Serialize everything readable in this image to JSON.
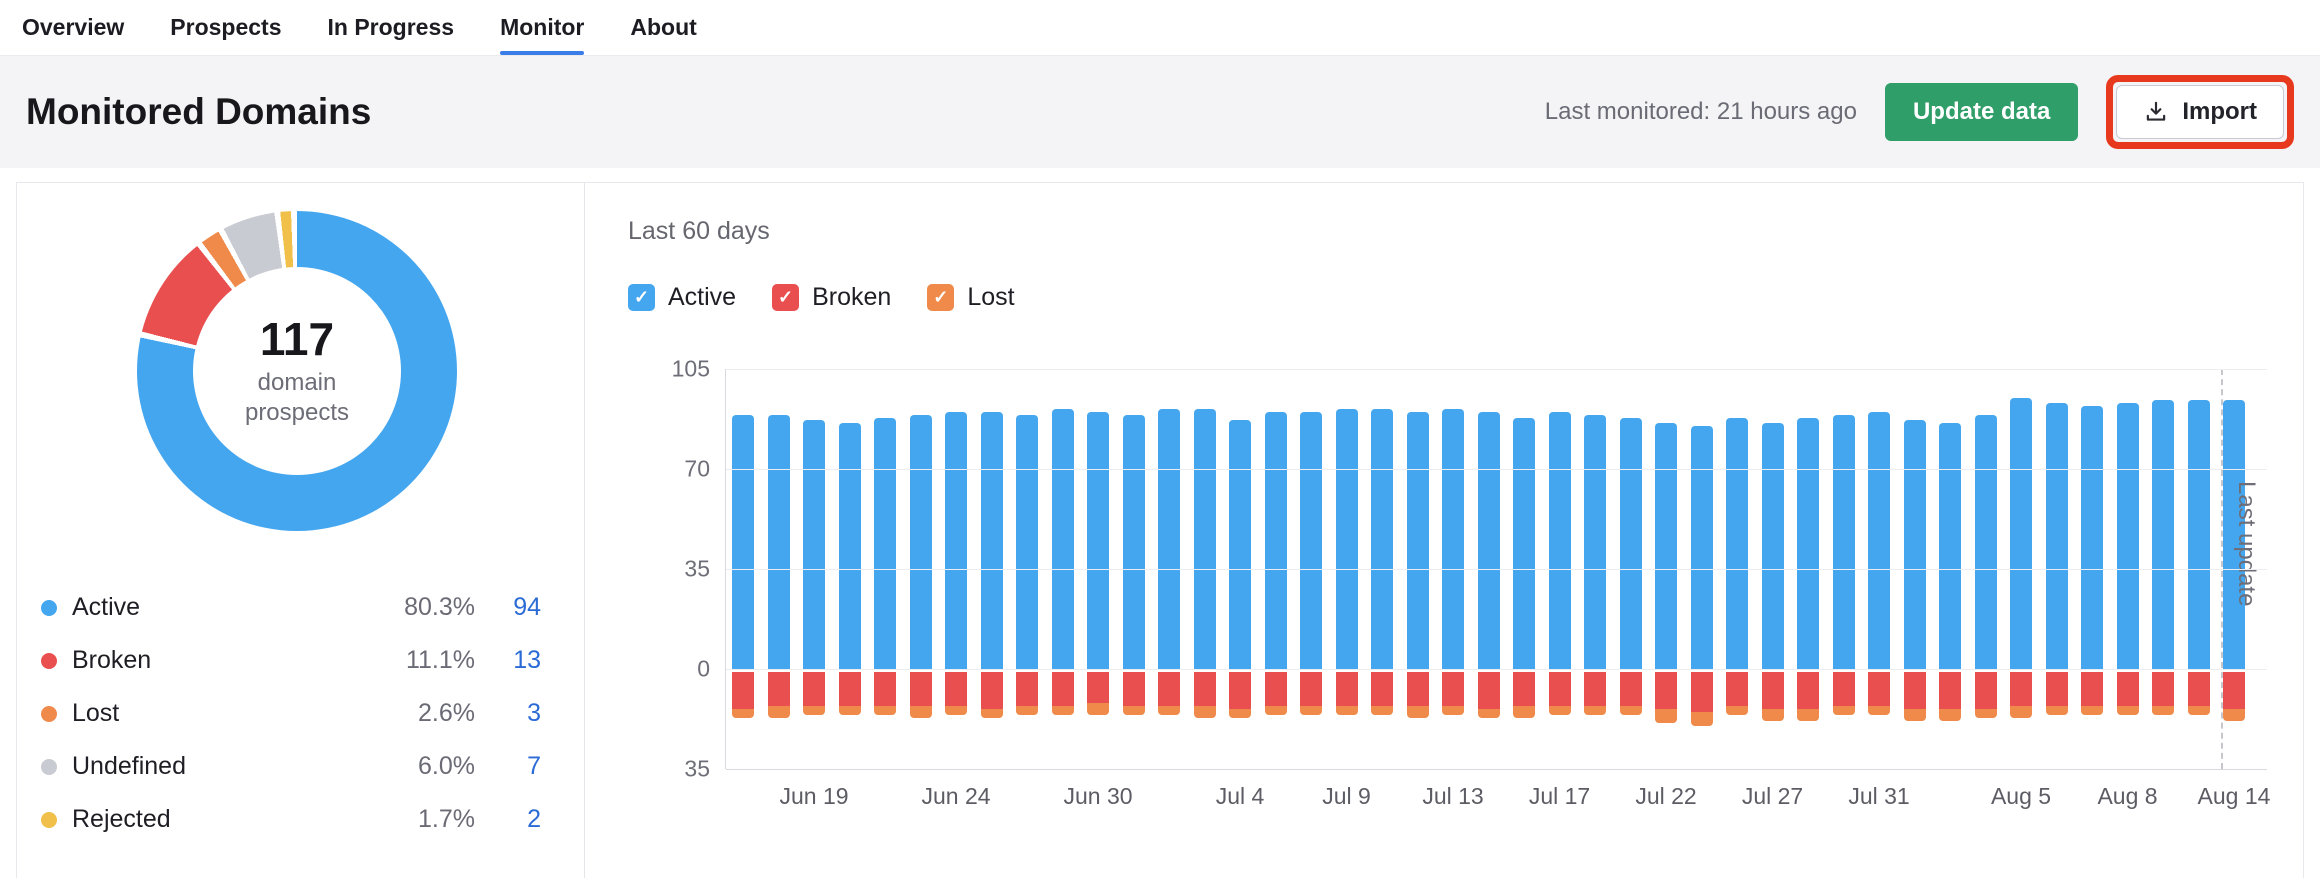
{
  "nav": {
    "items": [
      {
        "label": "Overview",
        "active": false
      },
      {
        "label": "Prospects",
        "active": false
      },
      {
        "label": "In Progress",
        "active": false
      },
      {
        "label": "Monitor",
        "active": true
      },
      {
        "label": "About",
        "active": false
      }
    ]
  },
  "header": {
    "title": "Monitored Domains",
    "last_monitored": "Last monitored: 21 hours ago",
    "update_button_label": "Update data",
    "import_button_label": "Import"
  },
  "donut": {
    "total": "117",
    "subtitle": "domain prospects",
    "legend": [
      {
        "label": "Active",
        "percent": "80.3%",
        "count": "94",
        "color": "#45a6f0"
      },
      {
        "label": "Broken",
        "percent": "11.1%",
        "count": "13",
        "color": "#ea4f4f"
      },
      {
        "label": "Lost",
        "percent": "2.6%",
        "count": "3",
        "color": "#ef8a4a"
      },
      {
        "label": "Undefined",
        "percent": "6.0%",
        "count": "7",
        "color": "#c8cbd2"
      },
      {
        "label": "Rejected",
        "percent": "1.7%",
        "count": "2",
        "color": "#f0c04a"
      }
    ]
  },
  "chart": {
    "period_label": "Last 60 days",
    "filters": [
      {
        "label": "Active",
        "color": "#45a6f0",
        "checked": true
      },
      {
        "label": "Broken",
        "color": "#ea4f4f",
        "checked": true
      },
      {
        "label": "Lost",
        "color": "#ef8a4a",
        "checked": true
      }
    ],
    "last_update_label": "Last update"
  },
  "icons": {
    "check": "✓"
  },
  "colors": {
    "accent_blue": "#3a7de8",
    "green_button": "#2f9e68",
    "annotation_red": "#e6391d",
    "link_blue": "#2b6bd6"
  },
  "chart_data": {
    "type": "bar",
    "stacked": true,
    "title": "Last 60 days",
    "bar_count": 43,
    "series": [
      {
        "name": "Active",
        "color": "#45a6f0",
        "values": [
          89,
          89,
          87,
          86,
          88,
          89,
          90,
          90,
          89,
          91,
          90,
          89,
          91,
          91,
          87,
          90,
          90,
          91,
          91,
          90,
          91,
          90,
          88,
          90,
          89,
          88,
          86,
          85,
          88,
          86,
          88,
          89,
          90,
          87,
          86,
          89,
          95,
          93,
          92,
          93,
          94,
          94,
          94
        ]
      },
      {
        "name": "Broken",
        "color": "#ea4f4f",
        "values": [
          -13,
          -12,
          -12,
          -12,
          -12,
          -12,
          -12,
          -13,
          -12,
          -12,
          -11,
          -12,
          -12,
          -12,
          -13,
          -12,
          -12,
          -12,
          -12,
          -12,
          -12,
          -13,
          -12,
          -12,
          -12,
          -12,
          -13,
          -14,
          -12,
          -13,
          -13,
          -12,
          -12,
          -13,
          -13,
          -13,
          -12,
          -12,
          -12,
          -12,
          -12,
          -12,
          -13
        ]
      },
      {
        "name": "Lost",
        "color": "#ef8a4a",
        "values": [
          -3,
          -4,
          -3,
          -3,
          -3,
          -4,
          -3,
          -3,
          -3,
          -3,
          -4,
          -3,
          -3,
          -4,
          -3,
          -3,
          -3,
          -3,
          -3,
          -4,
          -3,
          -3,
          -4,
          -3,
          -3,
          -3,
          -5,
          -5,
          -3,
          -4,
          -4,
          -3,
          -3,
          -4,
          -4,
          -3,
          -4,
          -3,
          -3,
          -3,
          -3,
          -3,
          -4
        ]
      }
    ],
    "x_tick_labels": [
      "Jun 19",
      "Jun 24",
      "Jun 30",
      "Jul 4",
      "Jul 9",
      "Jul 13",
      "Jul 17",
      "Jul 22",
      "Jul 27",
      "Jul 31",
      "Aug 5",
      "Aug 8",
      "Aug 14"
    ],
    "x_tick_positions": [
      2,
      6,
      10,
      14,
      17,
      20,
      23,
      26,
      29,
      32,
      36,
      39,
      42
    ],
    "y_ticks": [
      105,
      70,
      35,
      0,
      -35
    ],
    "y_tick_labels": [
      "105",
      "70",
      "35",
      "0",
      "35"
    ],
    "ylim": [
      -35,
      105
    ],
    "legend_position": "top",
    "annotation": "Last update"
  }
}
